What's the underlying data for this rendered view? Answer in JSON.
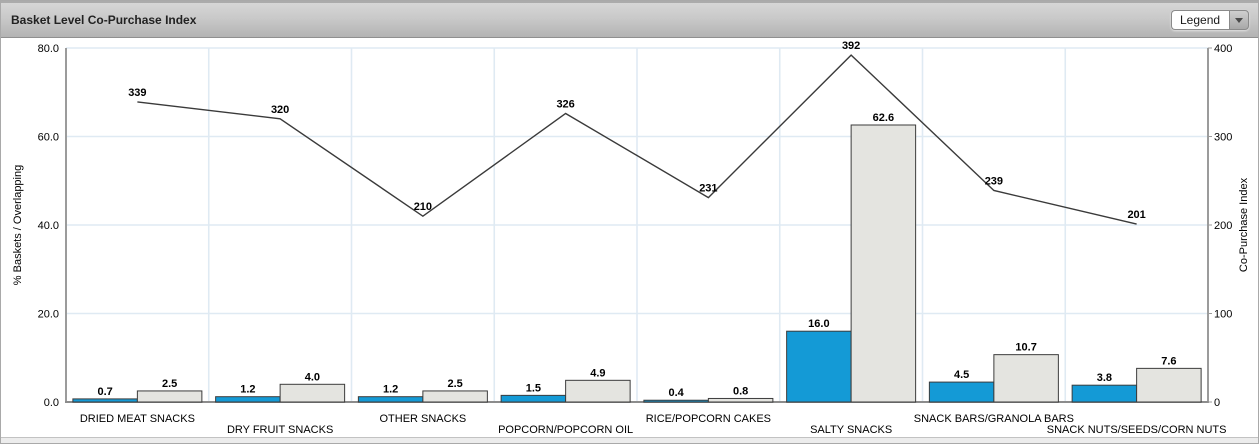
{
  "header": {
    "title": "Basket Level Co-Purchase Index",
    "legend_button_label": "Legend"
  },
  "colors": {
    "bar_blue": "#149ad6",
    "bar_gray": "#e4e4e0",
    "bar_border": "#3c3c3c",
    "line": "#3a3a3a",
    "grid": "#dfeaf3",
    "axis": "#9b9b9b",
    "baseline": "#8c8c8c",
    "label_text": "#000000"
  },
  "chart_data": {
    "type": "bar",
    "combo": "bar+line dual-axis",
    "title": "Basket Level Co-Purchase Index",
    "categories": [
      "DRIED MEAT SNACKS",
      "DRY FRUIT SNACKS",
      "OTHER SNACKS",
      "POPCORN/POPCORN OIL",
      "RICE/POPCORN CAKES",
      "SALTY SNACKS",
      "SNACK BARS/GRANOLA BARS",
      "SNACK NUTS/SEEDS/CORN NUTS"
    ],
    "series": [
      {
        "name": "pct-baskets-bar",
        "type": "bar",
        "axis": "left",
        "values": [
          0.7,
          1.2,
          1.2,
          1.5,
          0.4,
          16.0,
          4.5,
          3.8
        ]
      },
      {
        "name": "overlapping-bar",
        "type": "bar",
        "axis": "left",
        "values": [
          2.5,
          4.0,
          2.5,
          4.9,
          0.8,
          62.6,
          10.7,
          7.6
        ]
      },
      {
        "name": "co-purchase-index-line",
        "type": "line",
        "axis": "right",
        "values": [
          339,
          320,
          210,
          326,
          231,
          392,
          239,
          201
        ]
      }
    ],
    "left_axis": {
      "label": "% Baskets / Overlapping",
      "min": 0,
      "max": 80,
      "ticks": [
        "0.0",
        "20.0",
        "40.0",
        "60.0",
        "80.0"
      ]
    },
    "right_axis": {
      "label": "Co-Purchase Index",
      "min": 0,
      "max": 400,
      "ticks": [
        "0",
        "100",
        "200",
        "300",
        "400"
      ]
    },
    "grid": true,
    "legend_position": "collapsed-dropdown"
  }
}
